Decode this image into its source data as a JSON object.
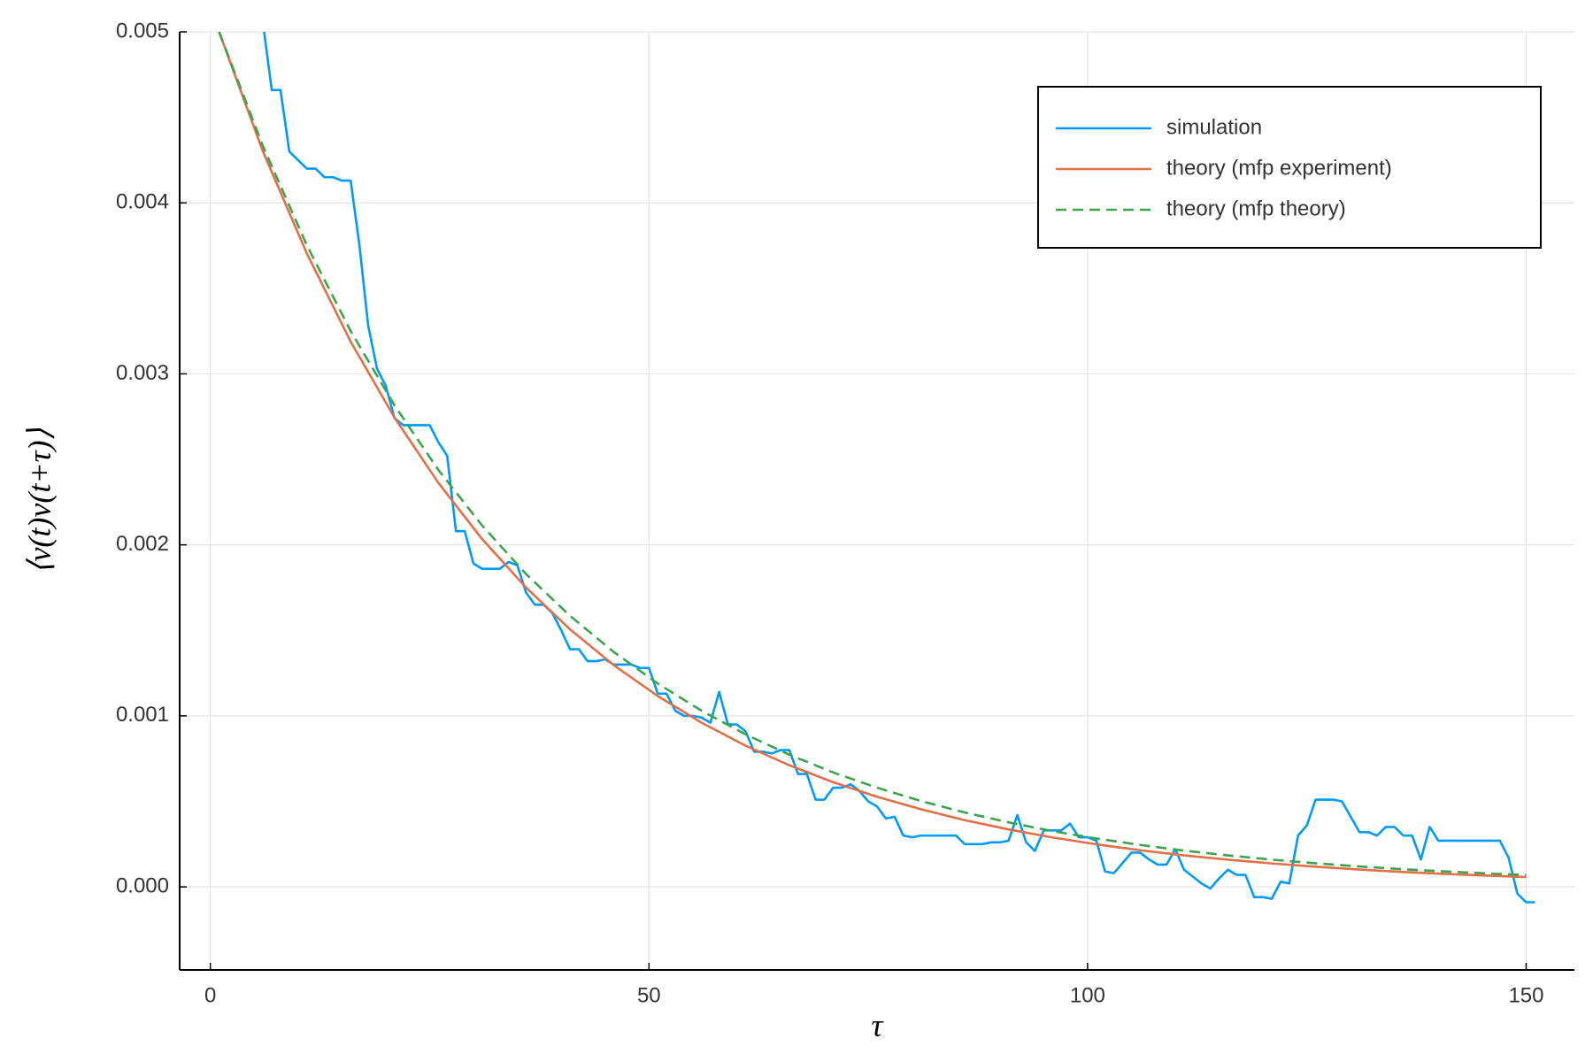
{
  "chart_data": {
    "type": "line",
    "x_label": "τ",
    "y_label": "⟨v(t)v(t+τ)⟩",
    "xlim": [
      -3.5,
      155.5
    ],
    "ylim": [
      -0.000486,
      0.005
    ],
    "xticks": [
      0,
      50,
      100,
      150
    ],
    "yticks": [
      {
        "value": 0,
        "label": "0.000"
      },
      0.001,
      0.002,
      0.003,
      0.004,
      0.005
    ],
    "grid": true,
    "legend": "top-right",
    "series": [
      {
        "name": "simulation",
        "color": "#009af9",
        "dash": false,
        "x": [
          6,
          7,
          8,
          9,
          10,
          11,
          12,
          13,
          14,
          15,
          16,
          17,
          18,
          19,
          20,
          21,
          22,
          23,
          24,
          25,
          26,
          27,
          28,
          29,
          30,
          31,
          32,
          33,
          34,
          35,
          36,
          37,
          38,
          39,
          40,
          41,
          42,
          43,
          44,
          45,
          46,
          47,
          48,
          49,
          50,
          51,
          52,
          53,
          54,
          55,
          56,
          57,
          58,
          59,
          60,
          61,
          62,
          63,
          64,
          65,
          66,
          67,
          68,
          69,
          70,
          71,
          72,
          73,
          74,
          75,
          76,
          77,
          78,
          79,
          80,
          81,
          82,
          83,
          84,
          85,
          86,
          87,
          88,
          89,
          90,
          91,
          92,
          93,
          94,
          95,
          96,
          97,
          98,
          99,
          100,
          101,
          102,
          103,
          104,
          105,
          106,
          107,
          108,
          109,
          110,
          111,
          112,
          113,
          114,
          115,
          116,
          117,
          118,
          119,
          120,
          121,
          122,
          123,
          124,
          125,
          126,
          127,
          128,
          129,
          130,
          131,
          132,
          133,
          134,
          135,
          136,
          137,
          138,
          139,
          140,
          141,
          142,
          143,
          144,
          145,
          146,
          147,
          148,
          149,
          150,
          151
        ],
        "values": [
          0.00505,
          0.00466,
          0.00466,
          0.0043,
          0.00425,
          0.0042,
          0.0042,
          0.00415,
          0.00415,
          0.00413,
          0.00413,
          0.00375,
          0.00328,
          0.00303,
          0.00293,
          0.00274,
          0.0027,
          0.0027,
          0.0027,
          0.0027,
          0.0026,
          0.00252,
          0.00208,
          0.00208,
          0.00189,
          0.00186,
          0.00186,
          0.00186,
          0.0019,
          0.00188,
          0.00172,
          0.00165,
          0.00165,
          0.0016,
          0.0015,
          0.00139,
          0.00139,
          0.00132,
          0.00132,
          0.00133,
          0.0013,
          0.0013,
          0.0013,
          0.00128,
          0.00128,
          0.00113,
          0.00113,
          0.00103,
          0.001,
          0.001,
          0.00099,
          0.00096,
          0.00114,
          0.00095,
          0.00095,
          0.00091,
          0.00079,
          0.00079,
          0.00078,
          0.0008,
          0.0008,
          0.00066,
          0.00066,
          0.00051,
          0.00051,
          0.00058,
          0.00058,
          0.0006,
          0.00056,
          0.0005,
          0.00047,
          0.0004,
          0.00041,
          0.0003,
          0.00029,
          0.0003,
          0.0003,
          0.0003,
          0.0003,
          0.0003,
          0.00025,
          0.00025,
          0.00025,
          0.00026,
          0.00026,
          0.00027,
          0.00042,
          0.00026,
          0.00021,
          0.00033,
          0.00033,
          0.00033,
          0.00037,
          0.00029,
          0.00029,
          0.00027,
          9e-05,
          8e-05,
          0.00014,
          0.0002,
          0.0002,
          0.00016,
          0.00013,
          0.00013,
          0.00022,
          0.0001,
          6e-05,
          2e-05,
          -1e-05,
          5e-05,
          0.0001,
          7e-05,
          7e-05,
          -6e-05,
          -6e-05,
          -7e-05,
          3e-05,
          2e-05,
          0.0003,
          0.00036,
          0.00051,
          0.00051,
          0.00051,
          0.0005,
          0.00041,
          0.00032,
          0.00032,
          0.0003,
          0.00035,
          0.00035,
          0.0003,
          0.0003,
          0.00016,
          0.00035,
          0.00027,
          0.00027,
          0.00027,
          0.00027,
          0.00027,
          0.00027,
          0.00027,
          0.00027,
          0.00017,
          -4e-05,
          -9e-05,
          -9e-05
        ]
      },
      {
        "name": "theory (mfp experiment)",
        "color": "#e26f46",
        "dash": false,
        "x": [
          1,
          6,
          11,
          16,
          21,
          26,
          31,
          36,
          41,
          46,
          51,
          56,
          61,
          66,
          71,
          76,
          81,
          86,
          91,
          96,
          101,
          106,
          111,
          116,
          121,
          126,
          131,
          136,
          141,
          146,
          150
        ],
        "values": [
          0.005,
          0.0043,
          0.003704,
          0.003188,
          0.002744,
          0.002362,
          0.002033,
          0.00175,
          0.001506,
          0.001296,
          0.001116,
          0.00096,
          0.000826,
          0.000711,
          0.000612,
          0.000527,
          0.000454,
          0.00039,
          0.000336,
          0.000289,
          0.000249,
          0.000214,
          0.000184,
          0.000159,
          0.000137,
          0.000118,
          0.000101,
          8.7e-05,
          7.5e-05,
          6.5e-05,
          5.7e-05
        ]
      },
      {
        "name": "theory (mfp theory)",
        "color": "#3da44d",
        "dash": true,
        "x": [
          1,
          6,
          11,
          16,
          21,
          26,
          31,
          36,
          41,
          46,
          51,
          56,
          61,
          66,
          71,
          76,
          81,
          86,
          91,
          96,
          101,
          106,
          111,
          116,
          121,
          126,
          131,
          136,
          141,
          146,
          150
        ],
        "values": [
          0.005,
          0.004331,
          0.003752,
          0.00325,
          0.002815,
          0.002438,
          0.002112,
          0.001829,
          0.001585,
          0.001373,
          0.001189,
          0.00103,
          0.000892,
          0.000773,
          0.000669,
          0.00058,
          0.000502,
          0.000435,
          0.000377,
          0.000326,
          0.000283,
          0.000245,
          0.000212,
          0.000184,
          0.000159,
          0.000138,
          0.000119,
          0.000103,
          8.95e-05,
          7.75e-05,
          6.91e-05
        ]
      }
    ]
  }
}
